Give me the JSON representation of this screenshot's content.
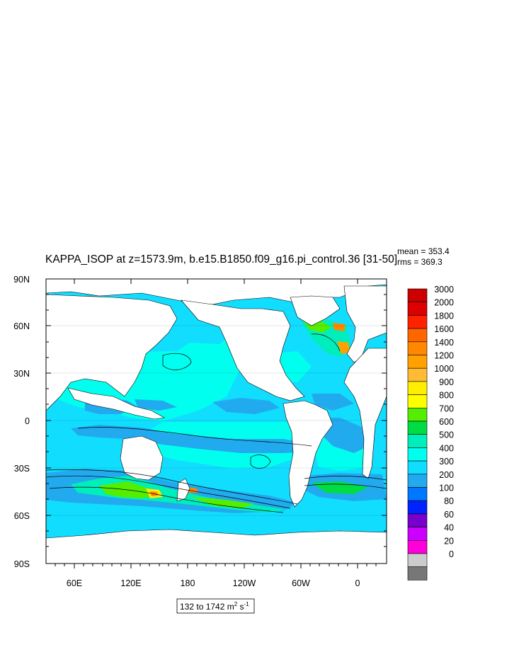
{
  "title": "KAPPA_ISOP at z=1573.9m, b.e15.B1850.f09_g16.pi_control.36 [31-50]",
  "stats": {
    "mean": "mean = 353.4",
    "rms": "rms = 369.3"
  },
  "lat_labels": [
    "90N",
    "60N",
    "30N",
    "0",
    "30S",
    "60S",
    "90S"
  ],
  "lon_labels": [
    "60E",
    "120E",
    "180",
    "120W",
    "60W",
    "0"
  ],
  "range_label": {
    "prefix": "132 to 1742 m",
    "sup1": "2",
    "mid": " s",
    "sup2": "-1"
  },
  "colorbar": {
    "labels": [
      "3000",
      "2000",
      "1800",
      "1600",
      "1400",
      "1200",
      "1000",
      "900",
      "800",
      "700",
      "600",
      "500",
      "400",
      "300",
      "200",
      "100",
      "80",
      "60",
      "40",
      "20",
      "0"
    ],
    "colors": [
      "#cc0000",
      "#dd0000",
      "#ff2200",
      "#ff6600",
      "#ff8800",
      "#ffa200",
      "#ffbb33",
      "#ffee00",
      "#ffff00",
      "#55ee00",
      "#00dd44",
      "#00eebb",
      "#00ffee",
      "#11ddff",
      "#22aaee",
      "#0077ff",
      "#0022ff",
      "#7700cc",
      "#cc00ff",
      "#ff00dd",
      "#cccccc",
      "#777777"
    ]
  },
  "colors": {
    "ocean_base": "#11ddff",
    "land": "#ffffff",
    "contour": "#000000"
  }
}
